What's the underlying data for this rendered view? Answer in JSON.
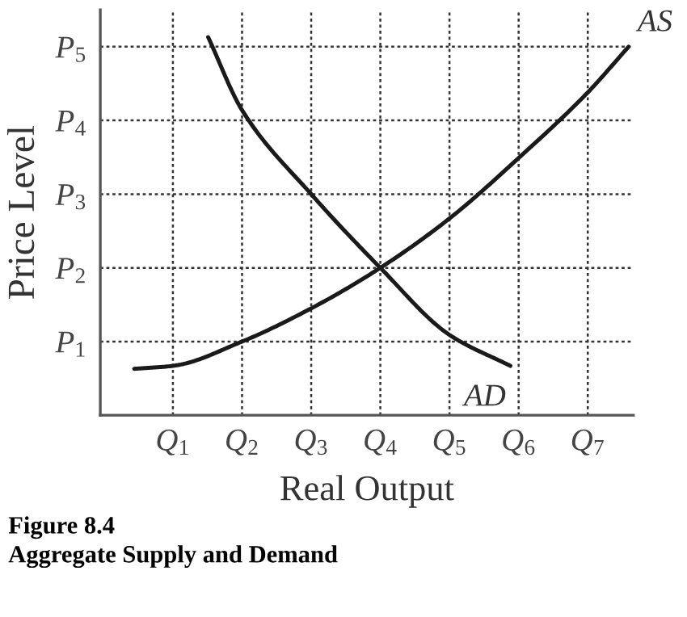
{
  "chart_data": {
    "type": "line",
    "xlabel": "Real Output",
    "ylabel": "Price Level",
    "annotations": [
      "Figure 8.4",
      "Aggregate Supply and Demand"
    ],
    "xlim": [
      -0.05,
      7.66
    ],
    "ylim": [
      0,
      5.5
    ],
    "xticks": [
      {
        "value": 1,
        "label": "Q$_{1}$"
      },
      {
        "value": 2,
        "label": "Q$_{2}$"
      },
      {
        "value": 3,
        "label": "Q$_{3}$"
      },
      {
        "value": 4,
        "label": "Q$_{4}$"
      },
      {
        "value": 5,
        "label": "Q$_{5}$"
      },
      {
        "value": 6,
        "label": "Q$_{6}$"
      },
      {
        "value": 7,
        "label": "Q$_{7}$"
      }
    ],
    "yticks": [
      {
        "value": 1,
        "label": "P$_{1}$"
      },
      {
        "value": 2,
        "label": "P$_{2}$"
      },
      {
        "value": 3,
        "label": "P$_{3}$"
      },
      {
        "value": 4,
        "label": "P$_{4}$"
      },
      {
        "value": 5,
        "label": "P$_{5}$"
      }
    ],
    "grid": true,
    "legend": false,
    "marker": "none",
    "line_style": "solid",
    "series": [
      {
        "name": "AS",
        "color": "#1a1a1a",
        "x": [
          0.44,
          1,
          2,
          3,
          4,
          5,
          6,
          7,
          7.59
        ],
        "values": [
          0.63,
          0.67,
          1,
          1.45,
          2,
          2.67,
          3.49,
          4.38,
          5.0
        ]
      },
      {
        "name": "AD",
        "color": "#1a1a1a",
        "x": [
          1.51,
          2,
          3,
          4,
          5,
          5.88
        ],
        "values": [
          5.13,
          4.14,
          3,
          2,
          1.09,
          0.67
        ]
      }
    ]
  }
}
